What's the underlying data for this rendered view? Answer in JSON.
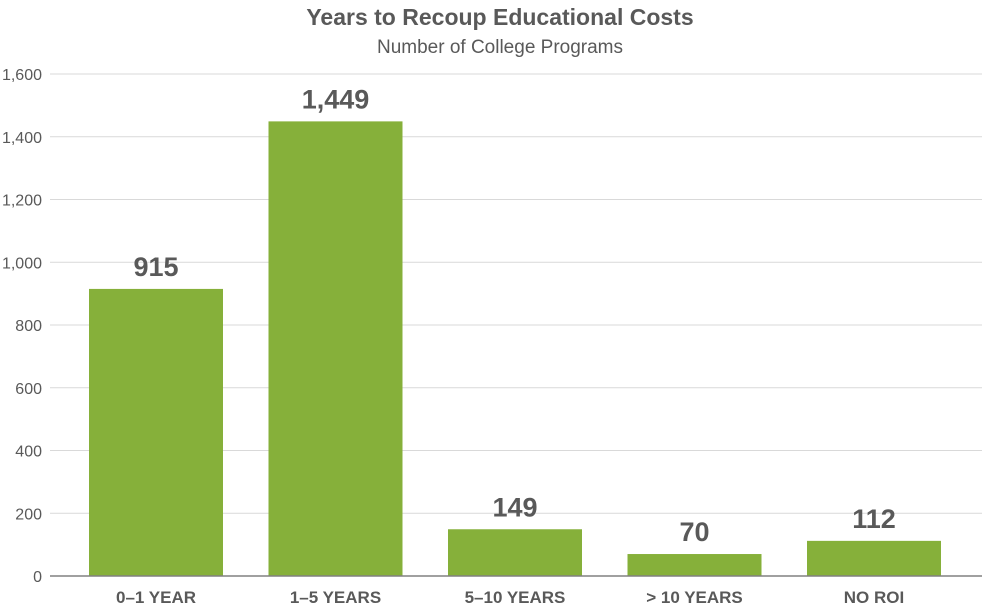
{
  "chart_data": {
    "type": "bar",
    "title": "Years to Recoup Educational Costs",
    "subtitle": "Number of College Programs",
    "categories": [
      "0–1 YEAR",
      "1–5 YEARS",
      "5–10 YEARS",
      "> 10 YEARS",
      "NO ROI"
    ],
    "values": [
      915,
      1449,
      149,
      70,
      112
    ],
    "data_labels": [
      "915",
      "1,449",
      "149",
      "70",
      "112"
    ],
    "ylim": [
      0,
      1600
    ],
    "yticks": [
      0,
      200,
      400,
      600,
      800,
      1000,
      1200,
      1400,
      1600
    ],
    "ytick_labels": [
      "0",
      "200",
      "400",
      "600",
      "800",
      "1,000",
      "1,200",
      "1,400",
      "1,600"
    ],
    "xlabel": "",
    "ylabel": "",
    "grid": true,
    "bar_color": "#86b03a",
    "grid_color": "#d9d9d9",
    "text_color": "#595959"
  }
}
